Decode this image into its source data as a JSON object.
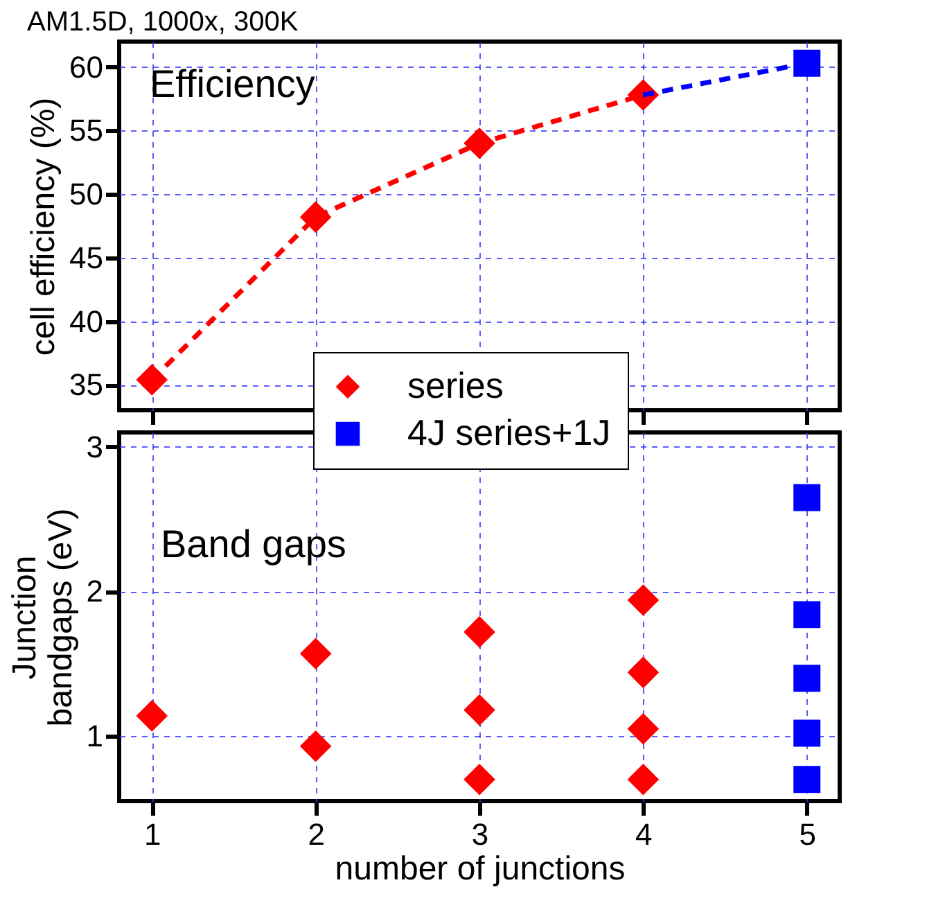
{
  "chart_data": [
    {
      "type": "line",
      "title": "AM1.5D, 1000x, 300K",
      "ylabel": "cell efficiency (%)",
      "annotations": [
        "Efficiency"
      ],
      "xlim": [
        0.8,
        5.2
      ],
      "xticks": [
        1,
        2,
        3,
        4,
        5
      ],
      "ylim": [
        33,
        62
      ],
      "yticks": [
        35,
        40,
        45,
        50,
        55,
        60
      ],
      "grid": true,
      "tick_labels": "y",
      "line_style": "dashed",
      "series": [
        {
          "color": "#ff0000",
          "x": [
            1,
            2,
            3,
            4
          ],
          "values": [
            35.4,
            48.2,
            54.0,
            57.8
          ],
          "marker": "diamond"
        },
        {
          "type": "line",
          "color": "#0000ff",
          "x": [
            4,
            5
          ],
          "values": [
            57.8,
            60.3
          ],
          "marker": "none"
        },
        {
          "type": "scatter",
          "color": "#0000ff",
          "x": [
            5
          ],
          "values": [
            60.3
          ],
          "marker": "square"
        }
      ]
    },
    {
      "type": "scatter",
      "xlabel": "number of junctions",
      "ylabel": "Junction\nbandgaps (eV)",
      "annotations": [
        "Band gaps"
      ],
      "xlim": [
        0.8,
        5.2
      ],
      "xticks": [
        1,
        2,
        3,
        4,
        5
      ],
      "ylim": [
        0.55,
        3.1
      ],
      "yticks": [
        1,
        2,
        3
      ],
      "grid": true,
      "legend": "top",
      "series": [
        {
          "name": "series",
          "color": "#ff0000",
          "marker": "diamond",
          "x": [
            1,
            2,
            2,
            3,
            3,
            3,
            4,
            4,
            4,
            4
          ],
          "values": [
            1.14,
            1.57,
            0.93,
            1.72,
            1.18,
            0.7,
            1.94,
            1.44,
            1.05,
            0.7
          ]
        },
        {
          "name": "4J series+1J",
          "color": "#0000ff",
          "marker": "square",
          "x": [
            5,
            5,
            5,
            5,
            5
          ],
          "values": [
            2.65,
            1.84,
            1.4,
            1.02,
            0.7
          ]
        }
      ]
    }
  ]
}
